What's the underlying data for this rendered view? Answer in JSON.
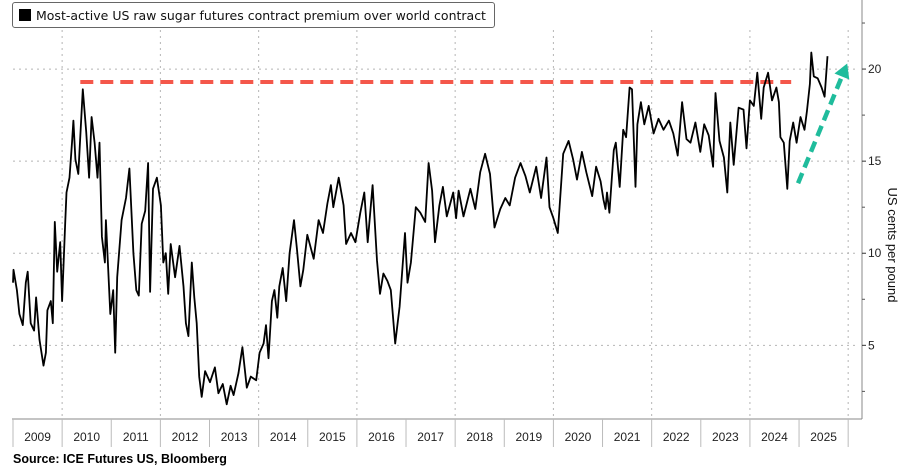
{
  "chart_data": {
    "type": "line",
    "title": "",
    "legend": [
      "Most-active US raw sugar futures contract premium over world contract"
    ],
    "legend_position": "top-left",
    "ylabel": "US cents per pound",
    "xlabel": "",
    "source": "Source: ICE Futures US, Bloomberg",
    "xlim": [
      2009,
      2026.2
    ],
    "ylim": [
      1,
      23.75
    ],
    "x_tick_labels": [
      "2009",
      "2010",
      "2011",
      "2012",
      "2013",
      "2014",
      "2015",
      "2016",
      "2017",
      "2018",
      "2019",
      "2020",
      "2021",
      "2022",
      "2023",
      "2024",
      "2025"
    ],
    "y_ticks": [
      5,
      10,
      15,
      20
    ],
    "y_minor_ticks": [
      2.5,
      7.5,
      12.5,
      17.5,
      22.5
    ],
    "x_grid_years": [
      2010,
      2012,
      2014,
      2016,
      2018,
      2020,
      2022,
      2024,
      2026
    ],
    "grid": true,
    "colors": {
      "series": "#000000",
      "reference_line": "#f4574a",
      "trend_arrow": "#1fbc9c"
    },
    "annotations": [
      {
        "type": "dashed-horizontal-line",
        "value": 19.3,
        "from": 2010.37,
        "to": 2024.84
      },
      {
        "type": "dashed-arrow",
        "from": [
          2024.98,
          13.8
        ],
        "to": [
          2025.98,
          20.3
        ]
      }
    ],
    "series": [
      {
        "name": "Most-active US raw sugar futures contract premium over world contract",
        "points": [
          [
            2009.0,
            8.4
          ],
          [
            2009.01,
            9.1
          ],
          [
            2009.08,
            8.0
          ],
          [
            2009.13,
            6.7
          ],
          [
            2009.2,
            6.1
          ],
          [
            2009.26,
            8.4
          ],
          [
            2009.3,
            9.0
          ],
          [
            2009.36,
            6.2
          ],
          [
            2009.43,
            5.8
          ],
          [
            2009.47,
            7.6
          ],
          [
            2009.54,
            5.3
          ],
          [
            2009.62,
            3.9
          ],
          [
            2009.67,
            4.6
          ],
          [
            2009.7,
            6.9
          ],
          [
            2009.77,
            7.4
          ],
          [
            2009.81,
            6.2
          ],
          [
            2009.85,
            11.7
          ],
          [
            2009.9,
            9.0
          ],
          [
            2009.96,
            10.6
          ],
          [
            2010.0,
            7.4
          ],
          [
            2010.06,
            11.5
          ],
          [
            2010.09,
            13.3
          ],
          [
            2010.15,
            14.1
          ],
          [
            2010.2,
            16.0
          ],
          [
            2010.23,
            17.2
          ],
          [
            2010.27,
            15.1
          ],
          [
            2010.33,
            14.3
          ],
          [
            2010.42,
            18.9
          ],
          [
            2010.49,
            16.6
          ],
          [
            2010.55,
            14.1
          ],
          [
            2010.6,
            17.4
          ],
          [
            2010.66,
            16.0
          ],
          [
            2010.72,
            14.1
          ],
          [
            2010.76,
            16.0
          ],
          [
            2010.81,
            10.9
          ],
          [
            2010.87,
            9.5
          ],
          [
            2010.89,
            11.8
          ],
          [
            2010.98,
            6.7
          ],
          [
            2011.04,
            8.0
          ],
          [
            2011.08,
            4.6
          ],
          [
            2011.12,
            8.7
          ],
          [
            2011.21,
            11.8
          ],
          [
            2011.3,
            13.0
          ],
          [
            2011.37,
            14.6
          ],
          [
            2011.45,
            10.0
          ],
          [
            2011.51,
            8.0
          ],
          [
            2011.56,
            7.7
          ],
          [
            2011.62,
            11.6
          ],
          [
            2011.69,
            12.3
          ],
          [
            2011.75,
            14.9
          ],
          [
            2011.79,
            7.9
          ],
          [
            2011.85,
            13.5
          ],
          [
            2011.93,
            14.1
          ],
          [
            2012.01,
            12.6
          ],
          [
            2012.06,
            9.5
          ],
          [
            2012.11,
            10.0
          ],
          [
            2012.16,
            7.8
          ],
          [
            2012.21,
            10.5
          ],
          [
            2012.3,
            8.7
          ],
          [
            2012.39,
            10.4
          ],
          [
            2012.47,
            8.2
          ],
          [
            2012.52,
            6.2
          ],
          [
            2012.57,
            5.5
          ],
          [
            2012.64,
            9.5
          ],
          [
            2012.69,
            7.6
          ],
          [
            2012.74,
            6.2
          ],
          [
            2012.79,
            3.3
          ],
          [
            2012.84,
            2.2
          ],
          [
            2012.91,
            3.6
          ],
          [
            2013.01,
            3.0
          ],
          [
            2013.11,
            3.8
          ],
          [
            2013.18,
            2.4
          ],
          [
            2013.27,
            2.9
          ],
          [
            2013.35,
            1.8
          ],
          [
            2013.43,
            2.8
          ],
          [
            2013.49,
            2.3
          ],
          [
            2013.59,
            3.5
          ],
          [
            2013.67,
            4.9
          ],
          [
            2013.76,
            2.7
          ],
          [
            2013.84,
            3.3
          ],
          [
            2013.95,
            3.1
          ],
          [
            2014.02,
            4.6
          ],
          [
            2014.1,
            5.1
          ],
          [
            2014.15,
            6.1
          ],
          [
            2014.2,
            4.3
          ],
          [
            2014.27,
            7.4
          ],
          [
            2014.32,
            8.0
          ],
          [
            2014.38,
            6.5
          ],
          [
            2014.42,
            8.2
          ],
          [
            2014.49,
            9.2
          ],
          [
            2014.56,
            7.4
          ],
          [
            2014.63,
            10.0
          ],
          [
            2014.72,
            11.8
          ],
          [
            2014.78,
            10.2
          ],
          [
            2014.85,
            8.2
          ],
          [
            2014.91,
            9.1
          ],
          [
            2014.99,
            11.0
          ],
          [
            2015.12,
            9.7
          ],
          [
            2015.22,
            11.8
          ],
          [
            2015.31,
            11.1
          ],
          [
            2015.4,
            12.7
          ],
          [
            2015.47,
            13.7
          ],
          [
            2015.52,
            12.5
          ],
          [
            2015.63,
            14.1
          ],
          [
            2015.73,
            12.6
          ],
          [
            2015.78,
            10.5
          ],
          [
            2015.88,
            11.1
          ],
          [
            2015.97,
            10.6
          ],
          [
            2016.07,
            12.2
          ],
          [
            2016.15,
            13.3
          ],
          [
            2016.22,
            10.6
          ],
          [
            2016.32,
            13.7
          ],
          [
            2016.41,
            9.6
          ],
          [
            2016.47,
            7.8
          ],
          [
            2016.54,
            8.9
          ],
          [
            2016.62,
            8.5
          ],
          [
            2016.69,
            8.0
          ],
          [
            2016.78,
            5.1
          ],
          [
            2016.87,
            7.1
          ],
          [
            2016.98,
            11.1
          ],
          [
            2017.03,
            8.4
          ],
          [
            2017.1,
            9.5
          ],
          [
            2017.2,
            12.5
          ],
          [
            2017.29,
            12.2
          ],
          [
            2017.39,
            11.7
          ],
          [
            2017.46,
            14.9
          ],
          [
            2017.53,
            13.4
          ],
          [
            2017.59,
            10.6
          ],
          [
            2017.68,
            12.6
          ],
          [
            2017.75,
            13.6
          ],
          [
            2017.83,
            12.0
          ],
          [
            2017.96,
            13.3
          ],
          [
            2018.02,
            11.9
          ],
          [
            2018.07,
            13.4
          ],
          [
            2018.17,
            12.0
          ],
          [
            2018.31,
            13.5
          ],
          [
            2018.41,
            12.4
          ],
          [
            2018.51,
            14.4
          ],
          [
            2018.61,
            15.4
          ],
          [
            2018.71,
            14.3
          ],
          [
            2018.8,
            11.4
          ],
          [
            2018.92,
            12.4
          ],
          [
            2019.02,
            13.0
          ],
          [
            2019.11,
            12.6
          ],
          [
            2019.22,
            14.1
          ],
          [
            2019.33,
            14.9
          ],
          [
            2019.43,
            14.2
          ],
          [
            2019.52,
            13.3
          ],
          [
            2019.65,
            14.7
          ],
          [
            2019.75,
            13.0
          ],
          [
            2019.86,
            15.2
          ],
          [
            2019.92,
            12.5
          ],
          [
            2020.0,
            11.9
          ],
          [
            2020.09,
            11.1
          ],
          [
            2020.2,
            15.4
          ],
          [
            2020.31,
            16.1
          ],
          [
            2020.4,
            15.1
          ],
          [
            2020.48,
            14.0
          ],
          [
            2020.58,
            15.5
          ],
          [
            2020.67,
            14.4
          ],
          [
            2020.79,
            13.1
          ],
          [
            2020.87,
            14.7
          ],
          [
            2020.96,
            13.9
          ],
          [
            2021.02,
            12.9
          ],
          [
            2021.06,
            12.4
          ],
          [
            2021.09,
            13.3
          ],
          [
            2021.14,
            12.2
          ],
          [
            2021.23,
            15.6
          ],
          [
            2021.27,
            16.0
          ],
          [
            2021.35,
            13.6
          ],
          [
            2021.42,
            16.7
          ],
          [
            2021.48,
            16.3
          ],
          [
            2021.55,
            19.0
          ],
          [
            2021.6,
            18.9
          ],
          [
            2021.67,
            13.6
          ],
          [
            2021.71,
            17.0
          ],
          [
            2021.78,
            18.2
          ],
          [
            2021.85,
            17.0
          ],
          [
            2021.94,
            18.0
          ],
          [
            2022.04,
            16.5
          ],
          [
            2022.14,
            17.3
          ],
          [
            2022.24,
            16.7
          ],
          [
            2022.35,
            17.2
          ],
          [
            2022.44,
            16.5
          ],
          [
            2022.53,
            15.3
          ],
          [
            2022.62,
            18.2
          ],
          [
            2022.71,
            16.2
          ],
          [
            2022.79,
            16.0
          ],
          [
            2022.89,
            17.1
          ],
          [
            2022.99,
            15.5
          ],
          [
            2023.07,
            17.0
          ],
          [
            2023.16,
            16.4
          ],
          [
            2023.25,
            14.7
          ],
          [
            2023.3,
            18.7
          ],
          [
            2023.38,
            16.1
          ],
          [
            2023.47,
            15.2
          ],
          [
            2023.54,
            13.3
          ],
          [
            2023.6,
            17.1
          ],
          [
            2023.67,
            14.8
          ],
          [
            2023.77,
            17.9
          ],
          [
            2023.87,
            17.8
          ],
          [
            2023.93,
            15.7
          ],
          [
            2024.0,
            18.3
          ],
          [
            2024.08,
            18.0
          ],
          [
            2024.15,
            19.8
          ],
          [
            2024.23,
            17.3
          ],
          [
            2024.28,
            19.0
          ],
          [
            2024.37,
            19.8
          ],
          [
            2024.45,
            18.3
          ],
          [
            2024.54,
            19.0
          ],
          [
            2024.59,
            18.2
          ],
          [
            2024.62,
            16.3
          ],
          [
            2024.69,
            16.0
          ],
          [
            2024.76,
            13.5
          ],
          [
            2024.81,
            16.1
          ],
          [
            2024.88,
            17.1
          ],
          [
            2024.95,
            16.0
          ],
          [
            2025.03,
            17.4
          ],
          [
            2025.11,
            16.7
          ],
          [
            2025.16,
            17.7
          ],
          [
            2025.22,
            19.2
          ],
          [
            2025.25,
            20.9
          ],
          [
            2025.3,
            19.6
          ],
          [
            2025.38,
            19.5
          ],
          [
            2025.46,
            19.0
          ],
          [
            2025.52,
            18.5
          ],
          [
            2025.58,
            20.7
          ]
        ]
      }
    ]
  }
}
